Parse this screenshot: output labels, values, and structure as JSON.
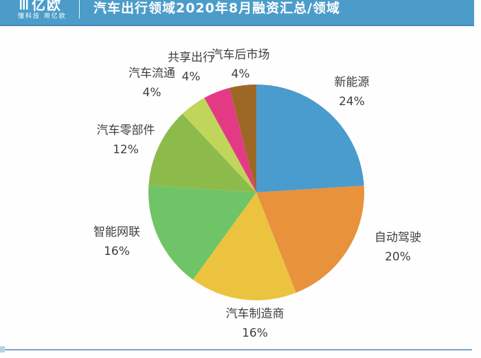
{
  "header": {
    "logo_text": "亿欧",
    "logo_tagline": "懂科技 用亿欧",
    "title": "汽车出行领域2020年8月融资汇总/领域"
  },
  "colors": {
    "header_bg": "#4C9CCA",
    "header_border": "#4189B8",
    "footer_rule": "#7EA0C3",
    "label_text": "#3E3E3E",
    "background": "#FDFEFD"
  },
  "chart_data": {
    "type": "pie",
    "title": "汽车出行领域2020年8月融资汇总/领域",
    "start_angle_deg": 0,
    "direction": "clockwise",
    "legend_position": "around-slices",
    "slices": [
      {
        "id": "new-energy",
        "label": "新能源",
        "value": 24,
        "pct": "24%",
        "color": "#4A9BCE"
      },
      {
        "id": "autonomous-driving",
        "label": "自动驾驶",
        "value": 20,
        "pct": "20%",
        "color": "#E8923C"
      },
      {
        "id": "manufacturers",
        "label": "汽车制造商",
        "value": 16,
        "pct": "16%",
        "color": "#ECC33F"
      },
      {
        "id": "intelligent-connectivity",
        "label": "智能网联",
        "value": 16,
        "pct": "16%",
        "color": "#6EC466"
      },
      {
        "id": "auto-parts",
        "label": "汽车零部件",
        "value": 12,
        "pct": "12%",
        "color": "#8DBB4B"
      },
      {
        "id": "auto-distribution",
        "label": "汽车流通",
        "value": 4,
        "pct": "4%",
        "color": "#BFD65A"
      },
      {
        "id": "shared-mobility",
        "label": "共享出行",
        "value": 4,
        "pct": "4%",
        "color": "#E43A86"
      },
      {
        "id": "aftermarket",
        "label": "汽车后市场",
        "value": 4,
        "pct": "4%",
        "color": "#9D6826"
      }
    ]
  }
}
